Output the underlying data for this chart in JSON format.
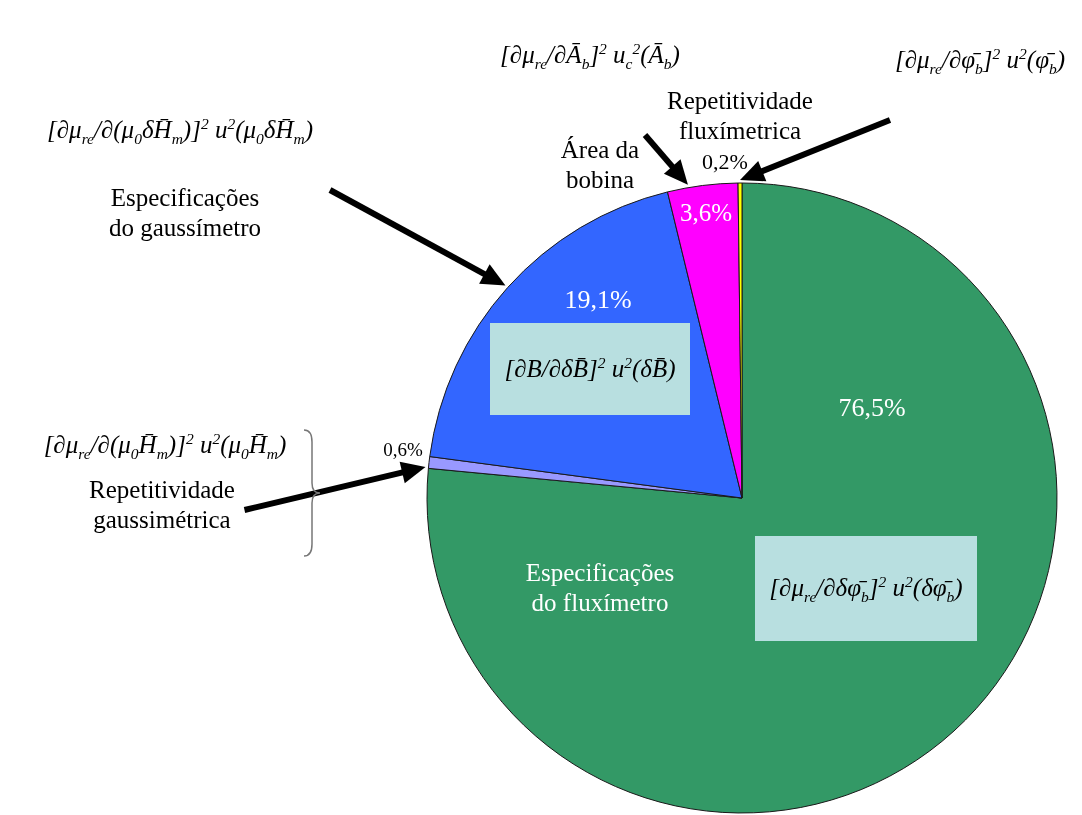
{
  "chart_data": {
    "type": "pie",
    "categories": [
      "Especificações do fluxímetro",
      "Repetitividade gaussimétrica",
      "Especificações do gaussímetro",
      "Área da bobina",
      "Repetitividade fluxímetrica"
    ],
    "values": [
      76.5,
      0.6,
      19.1,
      3.6,
      0.2
    ],
    "colors": [
      "#339966",
      "#9999ff",
      "#3366ff",
      "#ff00ff",
      "#ffff00"
    ],
    "value_labels": [
      "76,5%",
      "0,6%",
      "19,1%",
      "3,6%",
      "0,2%"
    ],
    "annotations": [
      "[∂μ$_{re}$/∂Ā$_{b}$]$^{2}$ u$_{c}$$^{2}$(Ā$_{b}$)",
      "[∂μ$_{re}$/∂φ̄$_{b}$]$^{2}$ u$^{2}$(φ̄$_{b}$)",
      "[∂μ$_{re}$/∂(μ$_{0}$δH̄$_{m}$)]$^{2}$ u$^{2}$(μ$_{0}$δH̄$_{m}$)",
      "[∂B/∂δB̄]$^{2}$ u$^{2}$(δB̄)",
      "[∂μ$_{re}$/∂(μ$_{0}$H̄$_{m}$)]$^{2}$ u$^{2}$(μ$_{0}$H̄$_{m}$)",
      "[∂μ$_{re}$/∂δφ̄$_{b}$]$^{2}$ u$^{2}$(δφ̄$_{b}$)"
    ]
  }
}
